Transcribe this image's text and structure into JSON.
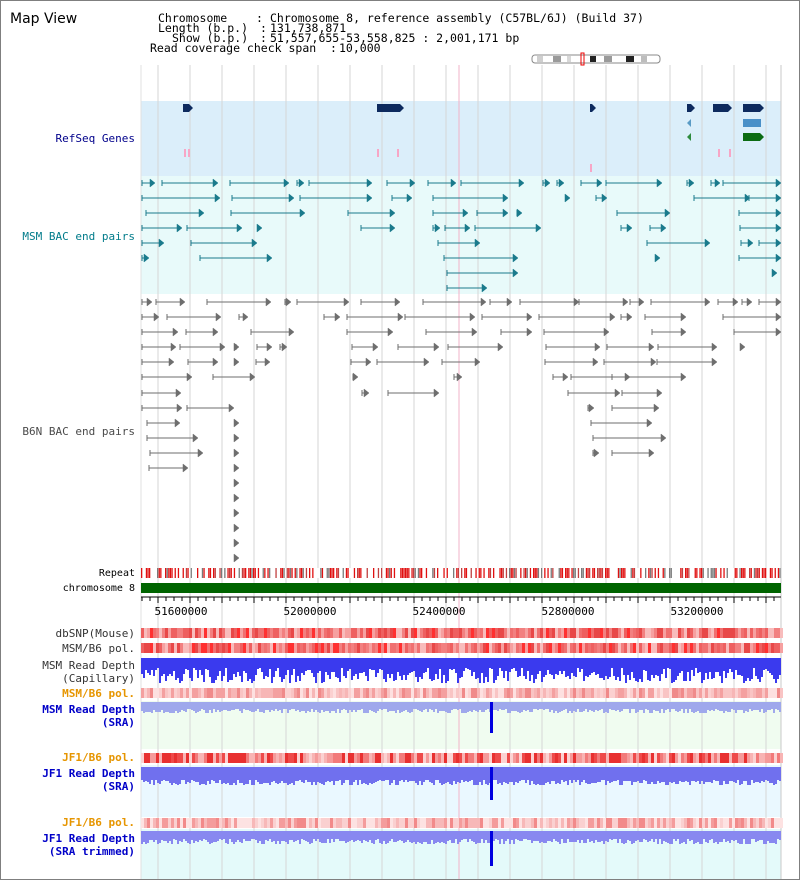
{
  "title": "Map View",
  "header": {
    "chromosome_key": "Chromosome",
    "chromosome_val": "Chromosome 8, reference assembly (C57BL/6J) (Build 37)",
    "length_key": "Length (b.p.)",
    "length_val": "131,738,871",
    "show_key": "Show (b.p.)",
    "show_val": "51,557,655-53,558,825 : 2,001,171 bp",
    "coverage_key": "Read coverage check span",
    "coverage_val": "10,000"
  },
  "tracks": {
    "refseq": "RefSeq Genes",
    "msm_bac": "MSM BAC end pairs",
    "b6n_bac": "B6N BAC end pairs",
    "repeat": "Repeat",
    "chromosome": "chromosome 8",
    "dbsnp": "dbSNP(Mouse)",
    "msm_b6_pol": "MSM/B6 pol.",
    "msm_depth_cap": "MSM Read Depth\n(Capillary)",
    "msm_b6_pol_sra": "MSM/B6 pol.",
    "msm_depth_sra": "MSM Read Depth\n(SRA)",
    "jf1_b6_pol": "JF1/B6 pol.",
    "jf1_depth_sra": "JF1 Read Depth\n(SRA)",
    "jf1_b6_pol2": "JF1/B6 pol.",
    "jf1_depth_trim": "JF1 Read Depth\n(SRA trimmed)"
  },
  "axis": {
    "ticks": [
      "51600000",
      "52000000",
      "52400000",
      "52800000",
      "53200000"
    ]
  },
  "colors": {
    "refseq_label": "#00008b",
    "msm_label": "#007b8a",
    "b6n_label": "#4a4a4a",
    "pol_orange": "#e69500",
    "depth_blue": "#0000c8",
    "chrom_green": "#006400"
  }
}
